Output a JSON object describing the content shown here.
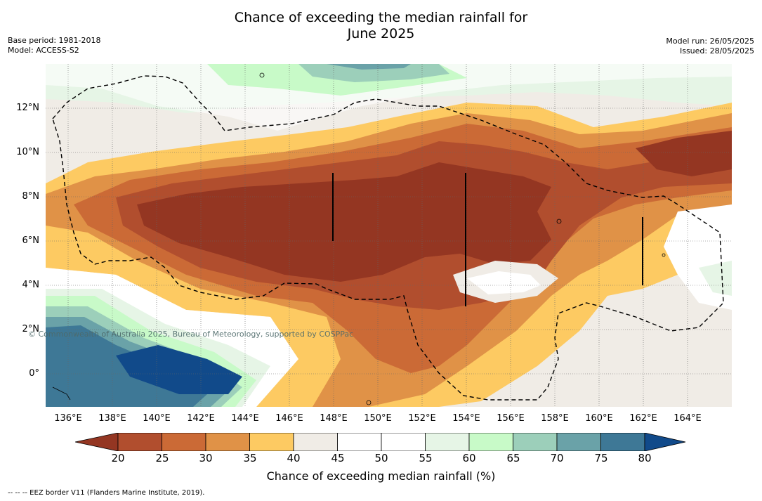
{
  "title_line1": "Chance of exceeding the median rainfall for",
  "title_line2": "June 2025",
  "meta_left": [
    "Base period: 1981-2018",
    "Model: ACCESS-S2"
  ],
  "meta_right": [
    "Model run: 26/05/2025",
    "Issued: 28/05/2025"
  ],
  "copyright": "© Commonwealth of Australia 2025, Bureau of Meteorology, supported by COSPPac",
  "latitude_labels": [
    "12°N",
    "10°N",
    "8°N",
    "6°N",
    "4°N",
    "2°N",
    "0°"
  ],
  "longitude_labels": [
    "136°E",
    "138°E",
    "140°E",
    "142°E",
    "144°E",
    "146°E",
    "148°E",
    "150°E",
    "152°E",
    "154°E",
    "156°E",
    "158°E",
    "160°E",
    "162°E",
    "164°E"
  ],
  "colorbar": {
    "ticks": [
      "20",
      "25",
      "30",
      "35",
      "40",
      "45",
      "50",
      "55",
      "60",
      "65",
      "70",
      "75",
      "80"
    ],
    "colors": [
      "#943622",
      "#b14e2e",
      "#cb6a36",
      "#e09247",
      "#fdca62",
      "#f0ece6",
      "#ffffff",
      "#ffffff",
      "#e6f5e6",
      "#c8fac8",
      "#9ccfba",
      "#6aa2a8",
      "#3e7896",
      "#114a8a"
    ],
    "label": "Chance of exceeding median rainfall (%)"
  },
  "legend_note": "-- -- -- EEZ border V11 (Flanders Marine Institute, 2019)."
}
